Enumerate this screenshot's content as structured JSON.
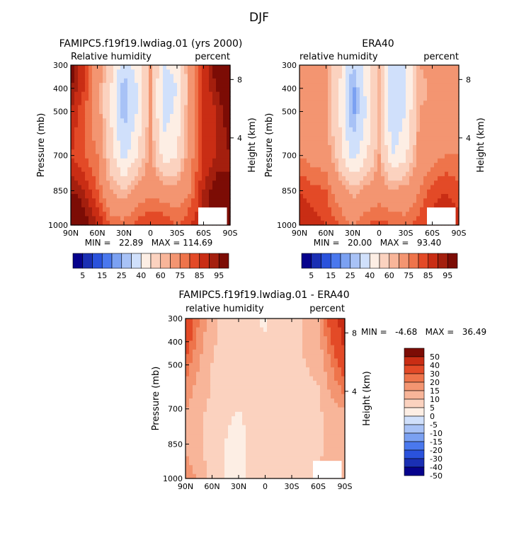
{
  "figure": {
    "title": "DJF"
  },
  "cmap_abs": [
    "#06028c",
    "#1a2fb4",
    "#2a52dc",
    "#4a78ee",
    "#7ba1f2",
    "#a8c2f6",
    "#d0e0fb",
    "#fdeee4",
    "#fbd2bf",
    "#f8b599",
    "#f39571",
    "#ee744b",
    "#e34a27",
    "#c92d14",
    "#a41f0e",
    "#7c0c05"
  ],
  "cmap_diff": [
    "#06028c",
    "#1a2fb4",
    "#2a52dc",
    "#4a78ee",
    "#7ba1f2",
    "#a8c2f6",
    "#d0e0fb",
    "#fdeee4",
    "#fbd2bf",
    "#f8b599",
    "#f39571",
    "#ee744b",
    "#e34a27",
    "#c92d14",
    "#7c0c05"
  ],
  "chart_data": [
    {
      "type": "heatmap",
      "title": "FAMIPC5.f19f19.lwdiag.01 (yrs 2000)",
      "left_label": "Relative humidity",
      "right_label": "percent",
      "ylabel": "Pressure (mb)",
      "ylabel_right": "Height (km)",
      "x_ticks": [
        "90N",
        "60N",
        "30N",
        "0",
        "30S",
        "60S",
        "90S"
      ],
      "y_ticks": [
        "300",
        "400",
        "500",
        "700",
        "850",
        "1000"
      ],
      "y_right_ticks": [
        "8",
        "4"
      ],
      "stats": "MIN =   22.89   MAX = 114.69",
      "min": 22.89,
      "max": 114.69,
      "colorbar_labels": [
        "5",
        "15",
        "25",
        "40",
        "60",
        "75",
        "85",
        "95"
      ],
      "x": [
        90,
        75,
        60,
        45,
        30,
        15,
        0,
        -15,
        -30,
        -45,
        -60,
        -75,
        -90
      ],
      "y": [
        300,
        400,
        500,
        700,
        850,
        1000
      ],
      "z": [
        [
          100,
          85,
          70,
          55,
          32,
          45,
          65,
          40,
          42,
          70,
          85,
          100,
          110
        ],
        [
          95,
          85,
          70,
          50,
          25,
          40,
          65,
          35,
          40,
          68,
          85,
          95,
          105
        ],
        [
          90,
          80,
          70,
          50,
          25,
          40,
          65,
          35,
          42,
          70,
          85,
          90,
          100
        ],
        [
          85,
          80,
          75,
          55,
          35,
          50,
          68,
          45,
          50,
          72,
          85,
          90,
          95
        ],
        [
          95,
          90,
          80,
          65,
          60,
          70,
          72,
          70,
          68,
          75,
          90,
          100,
          95
        ],
        [
          110,
          100,
          90,
          80,
          78,
          82,
          85,
          85,
          80,
          85,
          90,
          100,
          100
        ]
      ]
    },
    {
      "type": "heatmap",
      "title": "ERA40",
      "left_label": "relative humidity",
      "right_label": "percent",
      "ylabel": "Pressure (mb)",
      "ylabel_right": "Height (km)",
      "x_ticks": [
        "90N",
        "60N",
        "30N",
        "0",
        "30S",
        "60S",
        "90S"
      ],
      "y_ticks": [
        "300",
        "400",
        "500",
        "700",
        "850",
        "1000"
      ],
      "y_right_ticks": [
        "8",
        "4"
      ],
      "stats": "MIN =   20.00   MAX =   93.40",
      "min": 20.0,
      "max": 93.4,
      "colorbar_labels": [
        "5",
        "15",
        "25",
        "40",
        "60",
        "75",
        "85",
        "95"
      ],
      "x": [
        90,
        75,
        60,
        45,
        30,
        15,
        0,
        -15,
        -30,
        -45,
        -60,
        -75,
        -90
      ],
      "y": [
        300,
        400,
        500,
        700,
        850,
        1000
      ],
      "z": [
        [
          70,
          70,
          65,
          55,
          30,
          45,
          60,
          35,
          40,
          65,
          68,
          70,
          70
        ],
        [
          70,
          68,
          65,
          50,
          22,
          42,
          62,
          30,
          38,
          62,
          66,
          68,
          70
        ],
        [
          72,
          70,
          65,
          50,
          22,
          40,
          62,
          30,
          40,
          65,
          68,
          70,
          72
        ],
        [
          75,
          72,
          70,
          55,
          35,
          48,
          65,
          40,
          48,
          68,
          72,
          75,
          75
        ],
        [
          85,
          82,
          80,
          70,
          62,
          68,
          70,
          66,
          68,
          75,
          82,
          85,
          82
        ],
        [
          90,
          88,
          85,
          80,
          75,
          80,
          82,
          80,
          78,
          82,
          88,
          90,
          88
        ]
      ]
    },
    {
      "type": "heatmap",
      "title": "FAMIPC5.f19f19.lwdiag.01 - ERA40",
      "left_label": "relative humidity",
      "right_label": "percent",
      "ylabel": "Pressure (mb)",
      "ylabel_right": "Height (km)",
      "x_ticks": [
        "90N",
        "60N",
        "30N",
        "0",
        "30S",
        "60S",
        "90S"
      ],
      "y_ticks": [
        "300",
        "400",
        "500",
        "700",
        "850",
        "1000"
      ],
      "y_right_ticks": [
        "8",
        "4"
      ],
      "stats": "MIN =   -4.68   MAX =   36.49",
      "min": -4.68,
      "max": 36.49,
      "colorbar_labels": [
        "50",
        "40",
        "30",
        "20",
        "15",
        "10",
        "5",
        "0",
        "-5",
        "-10",
        "-15",
        "-20",
        "-30",
        "-40",
        "-50"
      ],
      "x": [
        90,
        75,
        60,
        45,
        30,
        15,
        0,
        -15,
        -30,
        -45,
        -60,
        -75,
        -90
      ],
      "y": [
        300,
        400,
        500,
        700,
        850,
        1000
      ],
      "z": [
        [
          30,
          15,
          6,
          4,
          3,
          2,
          -2,
          5,
          3,
          6,
          8,
          25,
          36
        ],
        [
          25,
          12,
          6,
          3,
          3,
          1,
          2,
          5,
          3,
          6,
          8,
          20,
          32
        ],
        [
          18,
          10,
          5,
          2,
          3,
          1,
          2,
          4,
          2,
          5,
          6,
          15,
          25
        ],
        [
          10,
          6,
          4,
          1,
          0,
          2,
          2,
          4,
          2,
          3,
          4,
          8,
          10
        ],
        [
          8,
          6,
          2,
          0,
          -2,
          1,
          2,
          3,
          1,
          2,
          4,
          6,
          8
        ],
        [
          15,
          8,
          4,
          0,
          -2,
          1,
          2,
          3,
          2,
          3,
          5,
          8,
          10
        ]
      ]
    }
  ]
}
